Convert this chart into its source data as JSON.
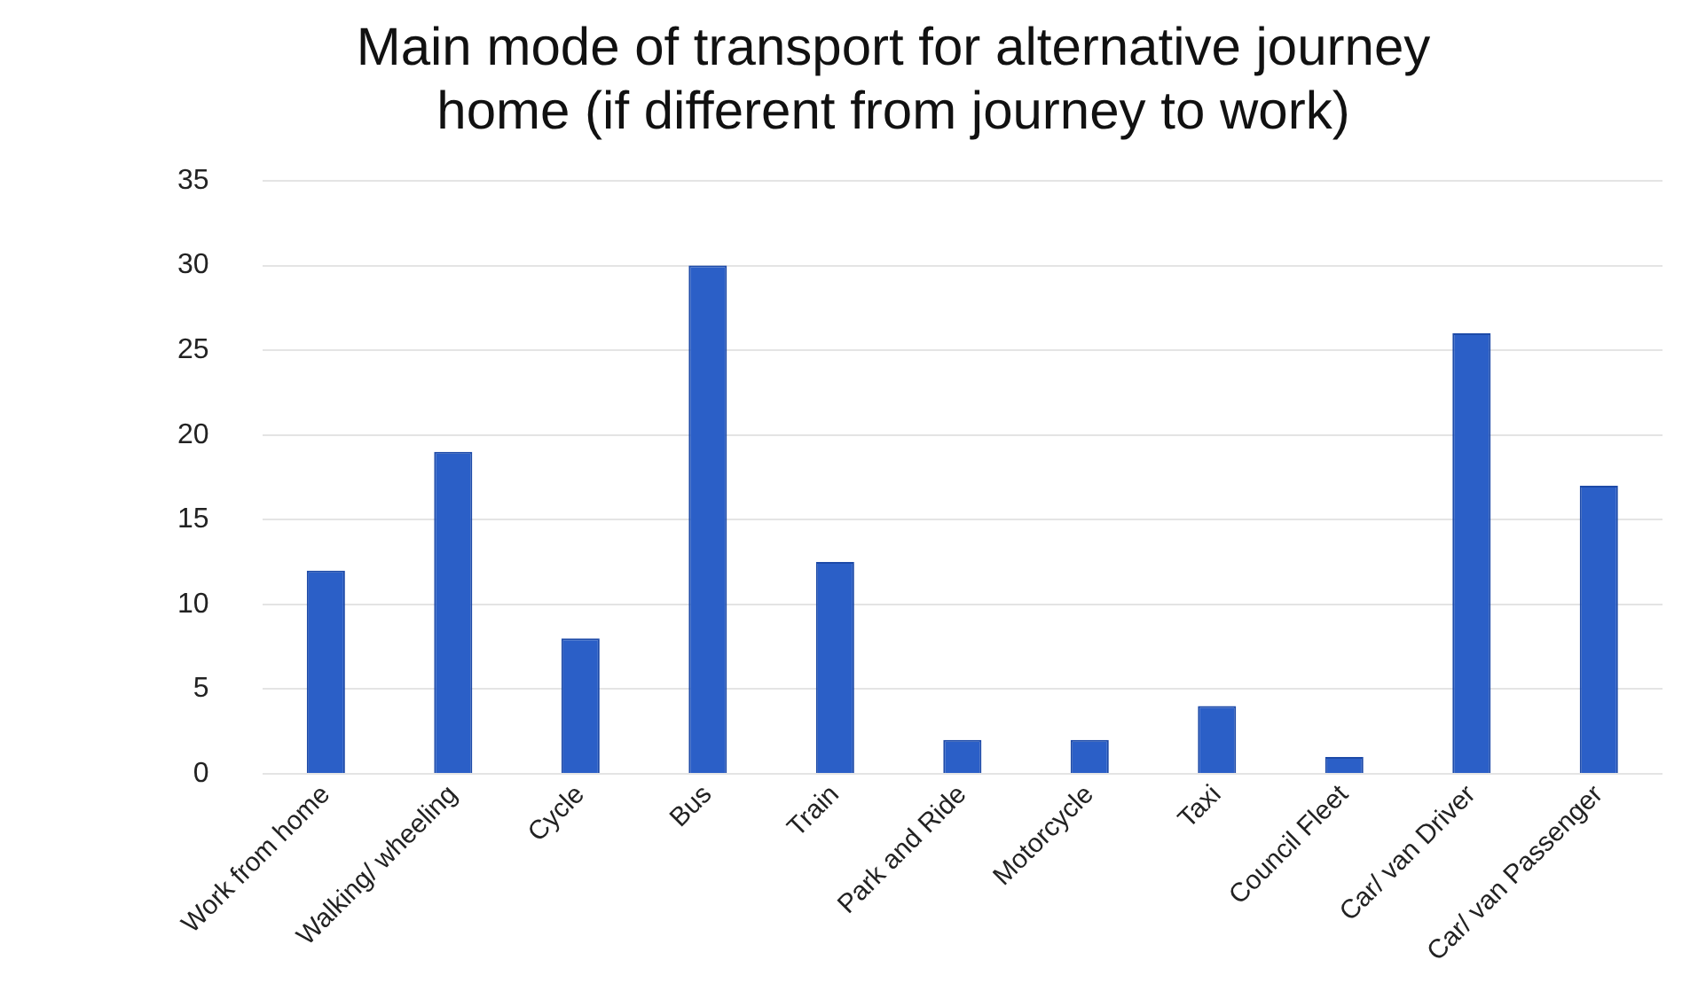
{
  "chart_data": {
    "type": "bar",
    "title": [
      "Main mode of transport for alternative journey",
      "home (if different from journey to work)"
    ],
    "categories": [
      "Work from home",
      "Walking/ wheeling",
      "Cycle",
      "Bus",
      "Train",
      "Park and Ride",
      "Motorcycle",
      "Taxi",
      "Council Fleet",
      "Car/ van Driver",
      "Car/ van Passenger"
    ],
    "values": [
      12,
      19,
      8,
      30,
      12.5,
      2,
      2,
      4,
      1,
      26,
      17
    ],
    "color": "#2b5fc7",
    "ylim": [
      0,
      35
    ],
    "yticks": [
      0,
      5,
      10,
      15,
      20,
      25,
      30,
      35
    ],
    "grid": "y"
  }
}
